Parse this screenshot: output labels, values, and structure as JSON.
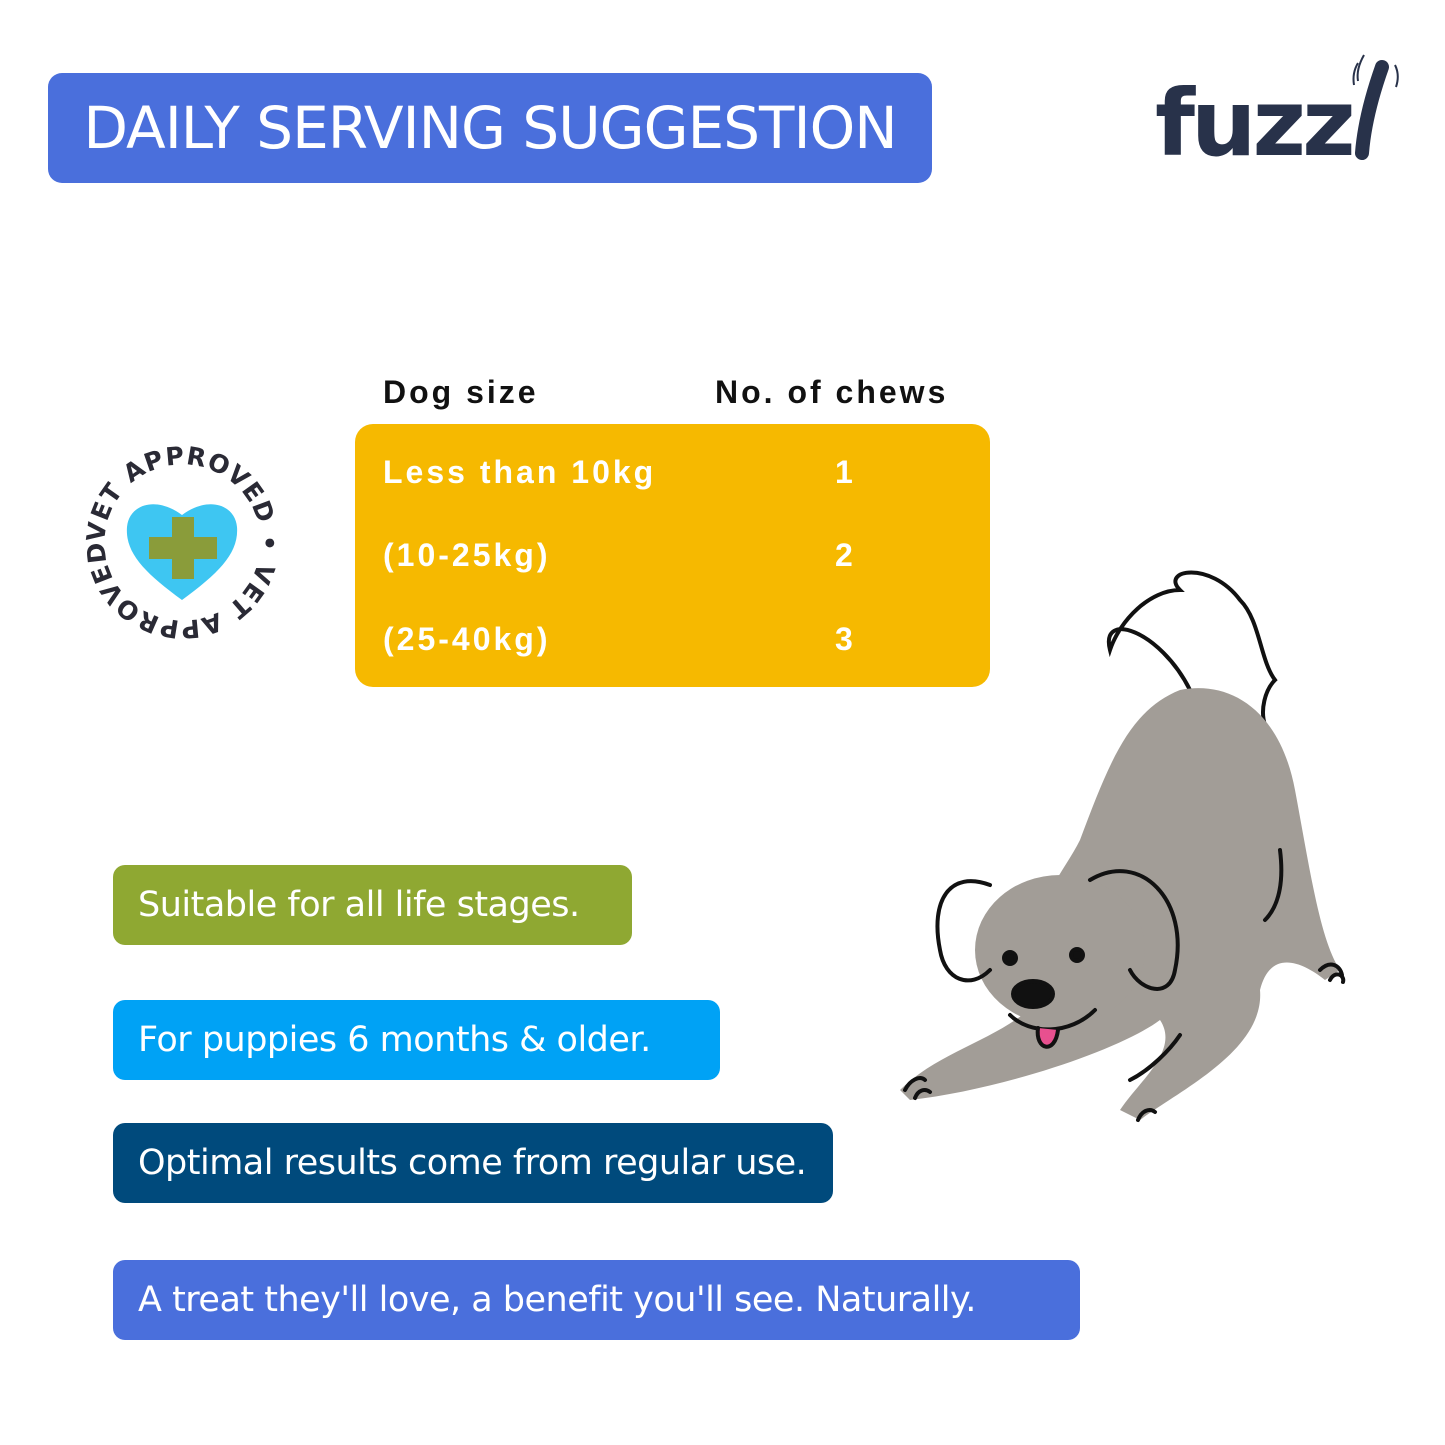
{
  "title": "DAILY SERVING SUGGESTION",
  "brand": {
    "logo_text": "fuzzl",
    "color": "#28324a"
  },
  "badge": {
    "text": "VET APPROVED • VET APPROVED •",
    "heart_color": "#3ec6f2",
    "cross_color": "#8a9c3a"
  },
  "table": {
    "headers": [
      "Dog size",
      "No. of chews"
    ],
    "rows": [
      {
        "size": "Less than 10kg",
        "chews": "1"
      },
      {
        "size": "(10-25kg)",
        "chews": "2"
      },
      {
        "size": "(25-40kg)",
        "chews": "3"
      }
    ],
    "color": "#f6b900"
  },
  "notes": [
    {
      "text": "Suitable for all life stages.",
      "color": "#8fa832"
    },
    {
      "text": "For puppies 6 months & older.",
      "color": "#00a2f5"
    },
    {
      "text": "Optimal results come from regular use.",
      "color": "#004a7c"
    },
    {
      "text": "A treat they'll love, a benefit you'll see. Naturally.",
      "color": "#4a6fdc"
    }
  ],
  "colors": {
    "title_bg": "#4a6fdc",
    "dog_body": "#a29d97"
  }
}
